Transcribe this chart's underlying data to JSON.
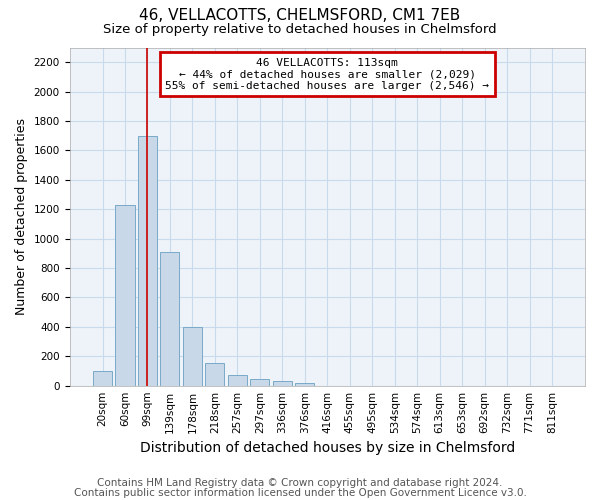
{
  "title1": "46, VELLACOTTS, CHELMSFORD, CM1 7EB",
  "title2": "Size of property relative to detached houses in Chelmsford",
  "xlabel": "Distribution of detached houses by size in Chelmsford",
  "ylabel": "Number of detached properties",
  "footer1": "Contains HM Land Registry data © Crown copyright and database right 2024.",
  "footer2": "Contains public sector information licensed under the Open Government Licence v3.0.",
  "categories": [
    "20sqm",
    "60sqm",
    "99sqm",
    "139sqm",
    "178sqm",
    "218sqm",
    "257sqm",
    "297sqm",
    "336sqm",
    "376sqm",
    "416sqm",
    "455sqm",
    "495sqm",
    "534sqm",
    "574sqm",
    "613sqm",
    "653sqm",
    "692sqm",
    "732sqm",
    "771sqm",
    "811sqm"
  ],
  "values": [
    100,
    1230,
    1700,
    910,
    400,
    155,
    70,
    45,
    30,
    20,
    0,
    0,
    0,
    0,
    0,
    0,
    0,
    0,
    0,
    0,
    0
  ],
  "bar_color": "#c8d8e8",
  "bar_edge_color": "#7aaac8",
  "annotation_line1": "46 VELLACOTTS: 113sqm",
  "annotation_line2": "← 44% of detached houses are smaller (2,029)",
  "annotation_line3": "55% of semi-detached houses are larger (2,546) →",
  "annotation_box_color": "#ffffff",
  "annotation_box_edge": "#cc0000",
  "vline_x_index": 2,
  "vline_color": "#cc0000",
  "ylim": [
    0,
    2300
  ],
  "yticks": [
    0,
    200,
    400,
    600,
    800,
    1000,
    1200,
    1400,
    1600,
    1800,
    2000,
    2200
  ],
  "grid_color": "#c8daeb",
  "background_color": "#edf3f8",
  "title1_fontsize": 11,
  "title2_fontsize": 9.5,
  "xlabel_fontsize": 10,
  "ylabel_fontsize": 9,
  "tick_fontsize": 7.5,
  "footer_fontsize": 7.5
}
